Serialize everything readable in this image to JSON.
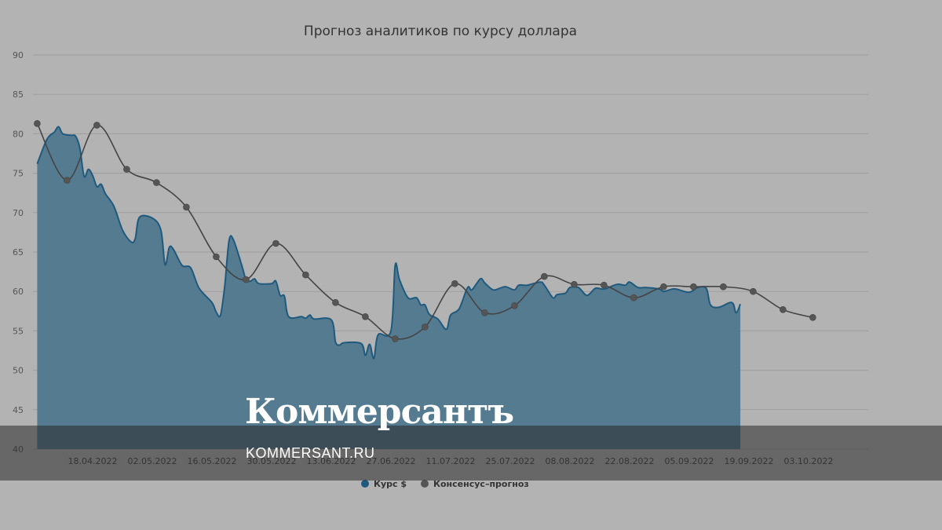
{
  "chart_data": {
    "type": "area",
    "title": "Прогноз аналитиков по курсу доллара",
    "xlabel": "",
    "ylabel": "",
    "ylim": [
      40,
      90
    ],
    "yticks": [
      40,
      45,
      50,
      55,
      60,
      65,
      70,
      75,
      80,
      85,
      90
    ],
    "xlim": [
      "2022-04-04",
      "2022-10-17"
    ],
    "xticks": [
      "18.04.2022",
      "02.05.2022",
      "16.05.2022",
      "30.05.2022",
      "13.06.2022",
      "27.06.2022",
      "11.07.2022",
      "25.07.2022",
      "08.08.2022",
      "22.08.2022",
      "05.09.2022",
      "19.09.2022",
      "03.10.2022"
    ],
    "grid": true,
    "legend_position": "bottom-center",
    "series": [
      {
        "name": "Курс $",
        "kind": "area",
        "color": "#1f5a7e",
        "fill": "#557b90",
        "points": [
          [
            "2022-04-05",
            76.2
          ],
          [
            "2022-04-07",
            79.0
          ],
          [
            "2022-04-08",
            79.8
          ],
          [
            "2022-04-09",
            80.2
          ],
          [
            "2022-04-10",
            80.9
          ],
          [
            "2022-04-11",
            80.0
          ],
          [
            "2022-04-13",
            79.8
          ],
          [
            "2022-04-14",
            79.7
          ],
          [
            "2022-04-15",
            78.2
          ],
          [
            "2022-04-16",
            74.6
          ],
          [
            "2022-04-17",
            75.5
          ],
          [
            "2022-04-18",
            74.7
          ],
          [
            "2022-04-19",
            73.3
          ],
          [
            "2022-04-20",
            73.6
          ],
          [
            "2022-04-21",
            72.4
          ],
          [
            "2022-04-23",
            70.8
          ],
          [
            "2022-04-25",
            67.8
          ],
          [
            "2022-04-27",
            66.3
          ],
          [
            "2022-04-28",
            66.7
          ],
          [
            "2022-04-29",
            69.4
          ],
          [
            "2022-05-02",
            69.3
          ],
          [
            "2022-05-04",
            67.8
          ],
          [
            "2022-05-05",
            63.4
          ],
          [
            "2022-05-06",
            65.6
          ],
          [
            "2022-05-07",
            65.3
          ],
          [
            "2022-05-09",
            63.3
          ],
          [
            "2022-05-11",
            63.0
          ],
          [
            "2022-05-13",
            60.4
          ],
          [
            "2022-05-16",
            58.6
          ],
          [
            "2022-05-17",
            57.4
          ],
          [
            "2022-05-18",
            57.0
          ],
          [
            "2022-05-19",
            60.7
          ],
          [
            "2022-05-20",
            66.4
          ],
          [
            "2022-05-21",
            66.6
          ],
          [
            "2022-05-23",
            63.3
          ],
          [
            "2022-05-24",
            61.5
          ],
          [
            "2022-05-25",
            61.3
          ],
          [
            "2022-05-26",
            61.6
          ],
          [
            "2022-05-27",
            61.0
          ],
          [
            "2022-05-30",
            61.0
          ],
          [
            "2022-05-31",
            61.3
          ],
          [
            "2022-06-01",
            59.5
          ],
          [
            "2022-06-02",
            59.4
          ],
          [
            "2022-06-03",
            56.8
          ],
          [
            "2022-06-06",
            56.8
          ],
          [
            "2022-06-07",
            56.6
          ],
          [
            "2022-06-08",
            57.0
          ],
          [
            "2022-06-09",
            56.5
          ],
          [
            "2022-06-13",
            56.4
          ],
          [
            "2022-06-14",
            53.6
          ],
          [
            "2022-06-15",
            53.2
          ],
          [
            "2022-06-16",
            53.5
          ],
          [
            "2022-06-20",
            53.4
          ],
          [
            "2022-06-21",
            51.9
          ],
          [
            "2022-06-22",
            53.3
          ],
          [
            "2022-06-23",
            51.5
          ],
          [
            "2022-06-24",
            54.5
          ],
          [
            "2022-06-27",
            55.0
          ],
          [
            "2022-06-28",
            63.3
          ],
          [
            "2022-06-29",
            61.5
          ],
          [
            "2022-07-01",
            59.2
          ],
          [
            "2022-07-03",
            59.2
          ],
          [
            "2022-07-04",
            58.3
          ],
          [
            "2022-07-05",
            58.3
          ],
          [
            "2022-07-06",
            57.1
          ],
          [
            "2022-07-08",
            56.5
          ],
          [
            "2022-07-10",
            55.2
          ],
          [
            "2022-07-11",
            57.0
          ],
          [
            "2022-07-13",
            57.8
          ],
          [
            "2022-07-15",
            60.5
          ],
          [
            "2022-07-16",
            60.2
          ],
          [
            "2022-07-18",
            61.6
          ],
          [
            "2022-07-19",
            61.1
          ],
          [
            "2022-07-21",
            60.2
          ],
          [
            "2022-07-23",
            60.5
          ],
          [
            "2022-07-24",
            60.6
          ],
          [
            "2022-07-26",
            60.2
          ],
          [
            "2022-07-27",
            60.8
          ],
          [
            "2022-07-29",
            60.8
          ],
          [
            "2022-08-01",
            61.2
          ],
          [
            "2022-08-02",
            60.8
          ],
          [
            "2022-08-04",
            59.2
          ],
          [
            "2022-08-05",
            59.6
          ],
          [
            "2022-08-07",
            59.8
          ],
          [
            "2022-08-08",
            60.5
          ],
          [
            "2022-08-10",
            60.5
          ],
          [
            "2022-08-12",
            59.5
          ],
          [
            "2022-08-14",
            60.4
          ],
          [
            "2022-08-16",
            60.3
          ],
          [
            "2022-08-19",
            60.9
          ],
          [
            "2022-08-21",
            60.8
          ],
          [
            "2022-08-22",
            61.2
          ],
          [
            "2022-08-24",
            60.5
          ],
          [
            "2022-08-26",
            60.5
          ],
          [
            "2022-08-29",
            60.3
          ],
          [
            "2022-08-30",
            60.0
          ],
          [
            "2022-09-01",
            60.3
          ],
          [
            "2022-09-02",
            60.3
          ],
          [
            "2022-09-05",
            59.9
          ],
          [
            "2022-09-07",
            60.5
          ],
          [
            "2022-09-09",
            60.4
          ],
          [
            "2022-09-10",
            58.3
          ],
          [
            "2022-09-12",
            58.0
          ],
          [
            "2022-09-15",
            58.6
          ],
          [
            "2022-09-16",
            57.3
          ],
          [
            "2022-09-17",
            58.4
          ]
        ]
      },
      {
        "name": "Консенсус–прогноз",
        "kind": "line",
        "color": "#444444",
        "marker_color": "#555555",
        "points": [
          [
            "2022-04-05",
            81.3
          ],
          [
            "2022-04-12",
            74.1
          ],
          [
            "2022-04-19",
            81.1
          ],
          [
            "2022-04-26",
            75.5
          ],
          [
            "2022-05-03",
            73.8
          ],
          [
            "2022-05-10",
            70.7
          ],
          [
            "2022-05-17",
            64.4
          ],
          [
            "2022-05-24",
            61.5
          ],
          [
            "2022-05-31",
            66.1
          ],
          [
            "2022-06-07",
            62.1
          ],
          [
            "2022-06-14",
            58.6
          ],
          [
            "2022-06-21",
            56.8
          ],
          [
            "2022-06-28",
            54.0
          ],
          [
            "2022-07-05",
            55.5
          ],
          [
            "2022-07-12",
            61.0
          ],
          [
            "2022-07-19",
            57.3
          ],
          [
            "2022-07-26",
            58.2
          ],
          [
            "2022-08-02",
            61.9
          ],
          [
            "2022-08-09",
            60.9
          ],
          [
            "2022-08-16",
            60.8
          ],
          [
            "2022-08-23",
            59.2
          ],
          [
            "2022-08-30",
            60.6
          ],
          [
            "2022-09-06",
            60.6
          ],
          [
            "2022-09-13",
            60.6
          ],
          [
            "2022-09-20",
            60.0
          ],
          [
            "2022-09-27",
            57.7
          ],
          [
            "2022-10-04",
            56.7
          ]
        ]
      }
    ]
  },
  "watermark": {
    "logo": "Коммерсантъ",
    "site": "KOMMERSANT.RU"
  }
}
